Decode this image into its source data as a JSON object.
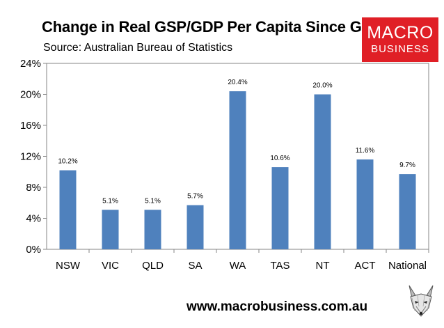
{
  "header": {
    "title": "Change in Real GSP/GDP Per Capita Since GFC",
    "subtitle": "Source: Australian Bureau of Statistics"
  },
  "logo": {
    "line1": "MACRO",
    "line2": "BUSINESS",
    "color": "#e01f26"
  },
  "footer": {
    "url": "www.macrobusiness.com.au",
    "mascot_icon": "fox-face-icon"
  },
  "chart_data": {
    "type": "bar",
    "categories": [
      "NSW",
      "VIC",
      "QLD",
      "SA",
      "WA",
      "TAS",
      "NT",
      "ACT",
      "National"
    ],
    "values": [
      10.2,
      5.1,
      5.1,
      5.7,
      20.4,
      10.6,
      20.0,
      11.6,
      9.7
    ],
    "data_labels": [
      "10.2%",
      "5.1%",
      "5.1%",
      "5.7%",
      "20.4%",
      "10.6%",
      "20.0%",
      "11.6%",
      "9.7%"
    ],
    "yticks": [
      0,
      4,
      8,
      12,
      16,
      20,
      24
    ],
    "ytick_labels": [
      "0%",
      "4%",
      "8%",
      "12%",
      "16%",
      "20%",
      "24%"
    ],
    "ylim": [
      0,
      24
    ],
    "grid": false,
    "legend": "none",
    "bar_color": "#4f81bd"
  }
}
